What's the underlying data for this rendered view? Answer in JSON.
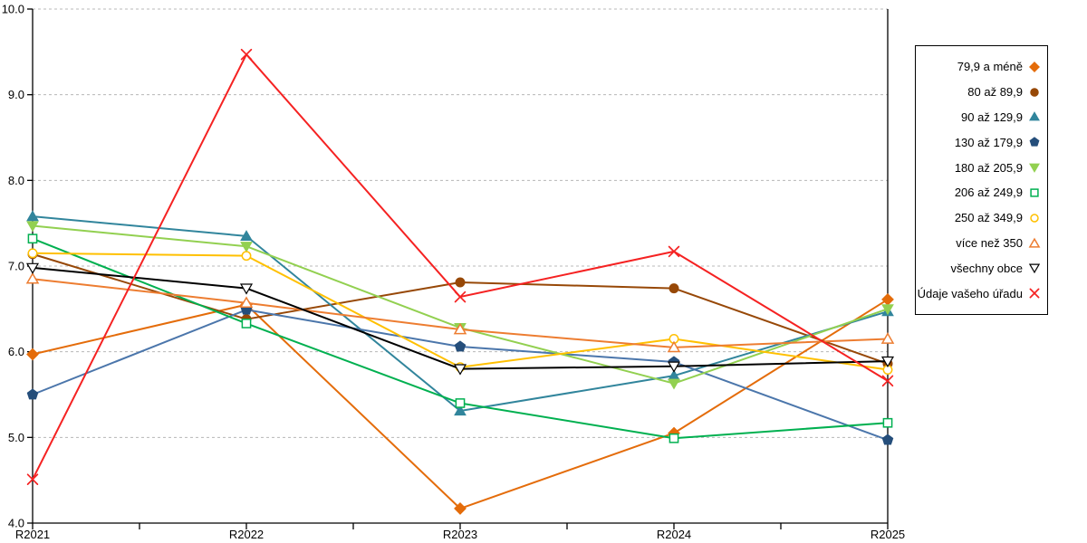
{
  "chart_data": {
    "type": "line",
    "title": "",
    "xlabel": "",
    "ylabel": "",
    "categories": [
      "R2021",
      "R2022",
      "R2023",
      "R2024",
      "R2025"
    ],
    "ylim": [
      4.0,
      10.0
    ],
    "ytick_step": 1.0,
    "ytick_labels": [
      "4.0",
      "5.0",
      "6.0",
      "7.0",
      "8.0",
      "9.0",
      "10.0"
    ],
    "grid": "horizontal-dashed",
    "grid_color": "#b8b8b8",
    "axis_color": "#000000",
    "legend_position": "right",
    "series": [
      {
        "name": "79,9 a méně",
        "marker": "diamond",
        "fill": "solid",
        "color": "#E46C0A",
        "values": [
          5.97,
          6.55,
          4.17,
          5.05,
          6.61
        ]
      },
      {
        "name": "80 až 89,9",
        "marker": "circle",
        "fill": "solid",
        "color": "#974807",
        "values": [
          7.14,
          6.38,
          6.81,
          6.74,
          5.86
        ]
      },
      {
        "name": "90 až 129,9",
        "marker": "triangle-up",
        "fill": "solid",
        "color": "#31859C",
        "values": [
          7.58,
          7.35,
          5.31,
          5.72,
          6.47
        ]
      },
      {
        "name": "130 až 179,9",
        "marker": "pentagon",
        "fill": "solid",
        "color": "#4B76AB",
        "marker_color": "#254E7B",
        "values": [
          5.5,
          6.49,
          6.06,
          5.88,
          4.97
        ]
      },
      {
        "name": "180 až 205,9",
        "marker": "triangle-down",
        "fill": "solid",
        "color": "#92D050",
        "values": [
          7.47,
          7.23,
          6.28,
          5.63,
          6.5
        ]
      },
      {
        "name": "206 až 249,9",
        "marker": "square",
        "fill": "open",
        "color": "#00B050",
        "values": [
          7.32,
          6.33,
          5.4,
          4.99,
          5.17
        ]
      },
      {
        "name": "250 až 349,9",
        "marker": "circle",
        "fill": "open",
        "color": "#FFC000",
        "values": [
          7.15,
          7.12,
          5.82,
          6.15,
          5.79
        ]
      },
      {
        "name": "více než 350",
        "marker": "triangle-up",
        "fill": "open",
        "color": "#ED7D31",
        "values": [
          6.85,
          6.57,
          6.26,
          6.05,
          6.15
        ]
      },
      {
        "name": "všechny obce",
        "marker": "triangle-down",
        "fill": "open",
        "color": "#000000",
        "values": [
          6.98,
          6.74,
          5.8,
          5.83,
          5.89
        ]
      },
      {
        "name": "Údaje vašeho úřadu",
        "marker": "x",
        "fill": "open",
        "color": "#F52222",
        "values": [
          4.51,
          9.47,
          6.64,
          7.17,
          5.66
        ]
      }
    ]
  }
}
